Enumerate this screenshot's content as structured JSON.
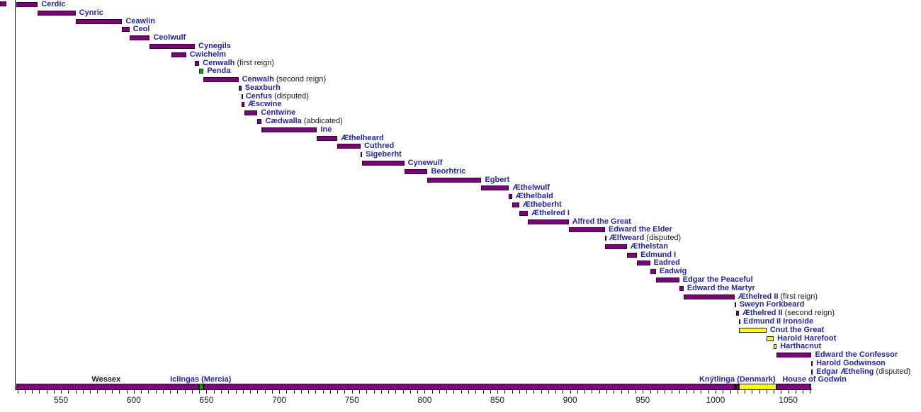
{
  "colors": {
    "bar_purple": "#800080",
    "bar_yellow": "#ffff00",
    "bar_green": "#00a800",
    "name_blue": "#2323ae",
    "note_black": "#1a1a1a",
    "axis_black": "#1a1a1a"
  },
  "chart_data": {
    "type": "bar",
    "variant": "reign-timeline-gantt",
    "title": "",
    "legend_position": "none",
    "grid": false,
    "axis": {
      "orientation": "horizontal-years",
      "year_min": 519,
      "year_max": 1066,
      "minor_tick_step_years": 5,
      "major_label_step_years": 50,
      "label_years": [
        550,
        600,
        650,
        700,
        750,
        800,
        850,
        900,
        950,
        1000,
        1050
      ],
      "tick_labels": [
        "550",
        "600",
        "650",
        "700",
        "750",
        "800",
        "850",
        "900",
        "950",
        "1000",
        "1050"
      ]
    },
    "reigns": [
      {
        "name": "Cerdic",
        "note": "",
        "from": 519,
        "till": 534,
        "color": "purple"
      },
      {
        "name": "Cynric",
        "note": "",
        "from": 534,
        "till": 560,
        "color": "purple"
      },
      {
        "name": "Ceawlin",
        "note": "",
        "from": 560,
        "till": 592,
        "color": "purple"
      },
      {
        "name": "Ceol",
        "note": "",
        "from": 592,
        "till": 597,
        "color": "purple"
      },
      {
        "name": "Ceolwulf",
        "note": "",
        "from": 597,
        "till": 611,
        "color": "purple"
      },
      {
        "name": "Cynegils",
        "note": "",
        "from": 611,
        "till": 642,
        "color": "purple"
      },
      {
        "name": "Cwichelm",
        "note": "",
        "from": 626,
        "till": 636,
        "color": "purple"
      },
      {
        "name": "Cenwalh",
        "note": "(first reign)",
        "from": 642,
        "till": 645,
        "color": "purple"
      },
      {
        "name": "Penda",
        "note": "",
        "from": 645,
        "till": 648,
        "color": "green"
      },
      {
        "name": "Cenwalh",
        "note": "(second reign)",
        "from": 648,
        "till": 672,
        "color": "purple"
      },
      {
        "name": "Seaxburh",
        "note": "",
        "from": 672,
        "till": 674,
        "color": "purple"
      },
      {
        "name": "Cenfus",
        "note": "(disputed)",
        "from": 674,
        "till": 674.5,
        "color": "purple"
      },
      {
        "name": "Æscwine",
        "note": "",
        "from": 674,
        "till": 676,
        "color": "purple"
      },
      {
        "name": "Centwine",
        "note": "",
        "from": 676,
        "till": 685,
        "color": "purple"
      },
      {
        "name": "Cædwalla",
        "note": "(abdicated)",
        "from": 685,
        "till": 688,
        "color": "purple"
      },
      {
        "name": "Ine",
        "note": "",
        "from": 688,
        "till": 726,
        "color": "purple"
      },
      {
        "name": "Æthelheard",
        "note": "",
        "from": 726,
        "till": 740,
        "color": "purple"
      },
      {
        "name": "Cuthred",
        "note": "",
        "from": 740,
        "till": 756,
        "color": "purple"
      },
      {
        "name": "Sigeberht",
        "note": "",
        "from": 756,
        "till": 757,
        "color": "purple"
      },
      {
        "name": "Cynewulf",
        "note": "",
        "from": 757,
        "till": 786,
        "color": "purple"
      },
      {
        "name": "Beorhtric",
        "note": "",
        "from": 786,
        "till": 802,
        "color": "purple"
      },
      {
        "name": "Egbert",
        "note": "",
        "from": 802,
        "till": 839,
        "color": "purple"
      },
      {
        "name": "Æthelwulf",
        "note": "",
        "from": 839,
        "till": 858,
        "color": "purple"
      },
      {
        "name": "Æthelbald",
        "note": "",
        "from": 858,
        "till": 860,
        "color": "purple"
      },
      {
        "name": "Ætheberht",
        "note": "",
        "from": 860,
        "till": 865,
        "color": "purple"
      },
      {
        "name": "Æthelred I",
        "note": "",
        "from": 865,
        "till": 871,
        "color": "purple"
      },
      {
        "name": "Alfred the Great",
        "note": "",
        "from": 871,
        "till": 899,
        "color": "purple"
      },
      {
        "name": "Edward the Elder",
        "note": "",
        "from": 899,
        "till": 924,
        "color": "purple"
      },
      {
        "name": "Ælfweard",
        "note": "(disputed)",
        "from": 924,
        "till": 924.4,
        "color": "purple"
      },
      {
        "name": "Æthelstan",
        "note": "",
        "from": 924,
        "till": 939,
        "color": "purple"
      },
      {
        "name": "Edmund I",
        "note": "",
        "from": 939,
        "till": 946,
        "color": "purple"
      },
      {
        "name": "Eadred",
        "note": "",
        "from": 946,
        "till": 955,
        "color": "purple"
      },
      {
        "name": "Eadwig",
        "note": "",
        "from": 955,
        "till": 959,
        "color": "purple"
      },
      {
        "name": "Edgar the Peaceful",
        "note": "",
        "from": 959,
        "till": 975,
        "color": "purple"
      },
      {
        "name": "Edward the Martyr",
        "note": "",
        "from": 975,
        "till": 978,
        "color": "purple"
      },
      {
        "name": "Æthelred II",
        "note": "(first reign)",
        "from": 978,
        "till": 1013,
        "color": "purple"
      },
      {
        "name": "Sweyn Forkbeard",
        "note": "",
        "from": 1013,
        "till": 1014,
        "color": "yellow"
      },
      {
        "name": "Æthelred II",
        "note": "(second reign)",
        "from": 1014,
        "till": 1016,
        "color": "purple"
      },
      {
        "name": "Edmund II Ironside",
        "note": "",
        "from": 1016,
        "till": 1016.6,
        "color": "purple"
      },
      {
        "name": "Cnut the Great",
        "note": "",
        "from": 1016,
        "till": 1035,
        "color": "yellow"
      },
      {
        "name": "Harold Harefoot",
        "note": "",
        "from": 1035,
        "till": 1040,
        "color": "yellow"
      },
      {
        "name": "Harthacnut",
        "note": "",
        "from": 1040,
        "till": 1042,
        "color": "yellow"
      },
      {
        "name": "Edward the Confessor",
        "note": "",
        "from": 1042,
        "till": 1066,
        "color": "purple"
      },
      {
        "name": "Harold Godwinson",
        "note": "",
        "from": 1066,
        "till": 1066.8,
        "color": "purple"
      },
      {
        "name": "Edgar Ætheling",
        "note": "(disputed)",
        "from": 1066,
        "till": 1066.8,
        "color": "purple"
      }
    ],
    "dynasty_bar": {
      "segments": [
        {
          "name": "Wessex",
          "from": 519,
          "till": 645,
          "color": "purple"
        },
        {
          "name": "Iclingas (Mercia)",
          "from": 645,
          "till": 648,
          "color": "green"
        },
        {
          "name": "Wessex",
          "from": 648,
          "till": 1013,
          "color": "purple"
        },
        {
          "name": "Knýtlinga (Denmark)",
          "from": 1013,
          "till": 1014,
          "color": "yellow"
        },
        {
          "name": "Wessex",
          "from": 1014,
          "till": 1016,
          "color": "purple"
        },
        {
          "name": "Knýtlinga (Denmark)",
          "from": 1016,
          "till": 1042,
          "color": "yellow"
        },
        {
          "name": "House of Godwin",
          "from": 1042,
          "till": 1066,
          "color": "purple"
        }
      ],
      "labels": [
        {
          "text": "Wessex",
          "color": "black",
          "anchor_year": 581
        },
        {
          "text": "Iclingas (Mercia)",
          "color": "blue",
          "anchor_year": 646
        },
        {
          "text": "Knýtlinga (Denmark)",
          "color": "blue",
          "anchor_year": 1015
        },
        {
          "text": "House of Godwin",
          "color": "blue",
          "anchor_year": 1068
        }
      ]
    }
  }
}
